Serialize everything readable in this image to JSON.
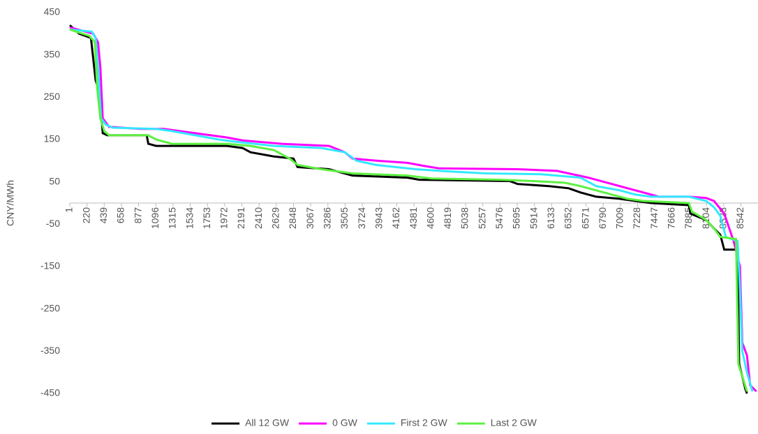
{
  "chart_data": {
    "type": "line",
    "y_label": "CNY/MWh",
    "xlim": [
      1,
      8760
    ],
    "xticks": [
      1,
      220,
      439,
      658,
      877,
      1096,
      1315,
      1534,
      1753,
      1972,
      2191,
      2410,
      2629,
      2848,
      3067,
      3286,
      3505,
      3724,
      3943,
      4162,
      4381,
      4600,
      4819,
      5038,
      5257,
      5476,
      5695,
      5914,
      6133,
      6352,
      6571,
      6790,
      7009,
      7228,
      7447,
      7666,
      7885,
      8104,
      8323,
      8542
    ],
    "ylim": [
      -450,
      450
    ],
    "yticks": [
      450,
      350,
      250,
      150,
      50,
      -50,
      -150,
      -250,
      -350,
      -450
    ],
    "grid": false,
    "legend": "bottom",
    "series": [
      {
        "name": "All 12 GW",
        "color": "#000000",
        "x": [
          1,
          120,
          270,
          330,
          380,
          420,
          480,
          980,
          1000,
          1100,
          2000,
          2200,
          2300,
          2600,
          2848,
          2900,
          3300,
          3600,
          4300,
          4450,
          5600,
          5700,
          6100,
          6350,
          6500,
          6700,
          7000,
          7200,
          7400,
          7880,
          7900,
          8100,
          8200,
          8280,
          8330,
          8500,
          8520,
          8600,
          8620
        ],
        "values": [
          420,
          400,
          390,
          290,
          260,
          165,
          160,
          160,
          140,
          135,
          135,
          130,
          120,
          110,
          105,
          85,
          80,
          65,
          60,
          55,
          52,
          45,
          40,
          35,
          25,
          15,
          10,
          5,
          0,
          -5,
          -25,
          -40,
          -60,
          -75,
          -110,
          -110,
          -380,
          -440,
          -450
        ]
      },
      {
        "name": "0 GW",
        "color": "#ff00ff",
        "x": [
          1,
          200,
          300,
          360,
          390,
          420,
          500,
          900,
          1200,
          1600,
          2000,
          2200,
          2700,
          3300,
          3500,
          3600,
          3900,
          4300,
          4500,
          4700,
          5700,
          6200,
          6350,
          6600,
          6900,
          7100,
          7300,
          7500,
          7880,
          8100,
          8200,
          8330,
          8450,
          8530,
          8560,
          8620,
          8660,
          8740
        ],
        "values": [
          415,
          405,
          400,
          380,
          320,
          200,
          180,
          175,
          175,
          165,
          155,
          148,
          140,
          135,
          120,
          105,
          100,
          95,
          88,
          82,
          80,
          76,
          70,
          60,
          45,
          35,
          25,
          15,
          15,
          12,
          5,
          -25,
          -90,
          -150,
          -330,
          -360,
          -430,
          -445
        ]
      },
      {
        "name": "First 2 GW",
        "color": "#33e8ff",
        "x": [
          1,
          280,
          330,
          360,
          400,
          460,
          550,
          1100,
          1300,
          1600,
          1900,
          2100,
          2600,
          3200,
          3500,
          3650,
          3900,
          4400,
          4800,
          5300,
          6000,
          6500,
          6700,
          7000,
          7200,
          7400,
          7880,
          8100,
          8200,
          8280,
          8350,
          8500,
          8530,
          8560,
          8620,
          8690
        ],
        "values": [
          410,
          405,
          390,
          320,
          200,
          185,
          178,
          175,
          170,
          160,
          150,
          145,
          135,
          130,
          120,
          100,
          90,
          80,
          75,
          70,
          68,
          60,
          40,
          30,
          20,
          15,
          15,
          5,
          -10,
          -30,
          -80,
          -90,
          -200,
          -350,
          -400,
          -445
        ]
      },
      {
        "name": "Last 2 GW",
        "color": "#5cf040",
        "x": [
          1,
          250,
          320,
          350,
          390,
          440,
          500,
          1000,
          1100,
          1300,
          2000,
          2300,
          2600,
          2800,
          2900,
          3200,
          3600,
          4300,
          4600,
          5500,
          5900,
          6300,
          6500,
          6700,
          6900,
          7100,
          7300,
          7880,
          7920,
          8100,
          8200,
          8280,
          8480,
          8510,
          8620
        ],
        "values": [
          410,
          395,
          380,
          270,
          200,
          170,
          160,
          160,
          150,
          140,
          140,
          135,
          125,
          105,
          90,
          80,
          70,
          65,
          58,
          55,
          52,
          48,
          40,
          30,
          20,
          10,
          5,
          0,
          -20,
          -40,
          -60,
          -80,
          -85,
          -380,
          -445
        ]
      }
    ]
  }
}
